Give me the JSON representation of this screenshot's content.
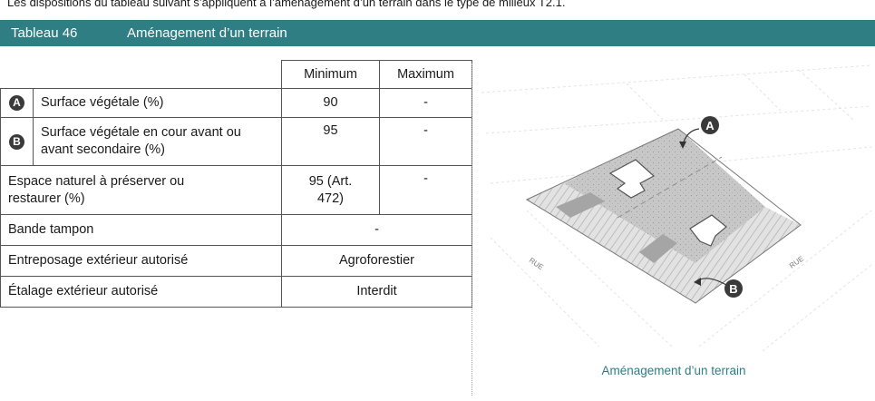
{
  "intro": "Les dispositions du tableau suivant s’appliquent à l’aménagement d’un terrain dans le type de milieux T2.1.",
  "table": {
    "number": "Tableau 46",
    "title": "Aménagement d’un terrain",
    "headers": {
      "min": "Minimum",
      "max": "Maximum"
    },
    "rows": [
      {
        "letter": "A",
        "label": "Surface végétale (%)",
        "min": "90",
        "max": "-"
      },
      {
        "letter": "B",
        "label": "Surface végétale en cour avant ou avant secondaire (%)",
        "min": "95",
        "max": "-"
      },
      {
        "label": "Espace naturel à préserver ou restaurer (%)",
        "min": "95 (Art. 472)",
        "max": "-"
      },
      {
        "label": "Bande tampon",
        "value": "-"
      },
      {
        "label": "Entreposage extérieur autorisé",
        "value": "Agroforestier"
      },
      {
        "label": "Étalage extérieur autorisé",
        "value": "Interdit"
      }
    ]
  },
  "figure": {
    "caption": "Aménagement d’un terrain",
    "street_left": "RUE",
    "street_right": "RUE",
    "marker_a": "A",
    "marker_b": "B"
  },
  "colors": {
    "accent": "#2f7e84",
    "lot_fill": "#c9c9c9",
    "front_yard_fill": "#dcdcdc",
    "marker": "#3a3a3a"
  }
}
